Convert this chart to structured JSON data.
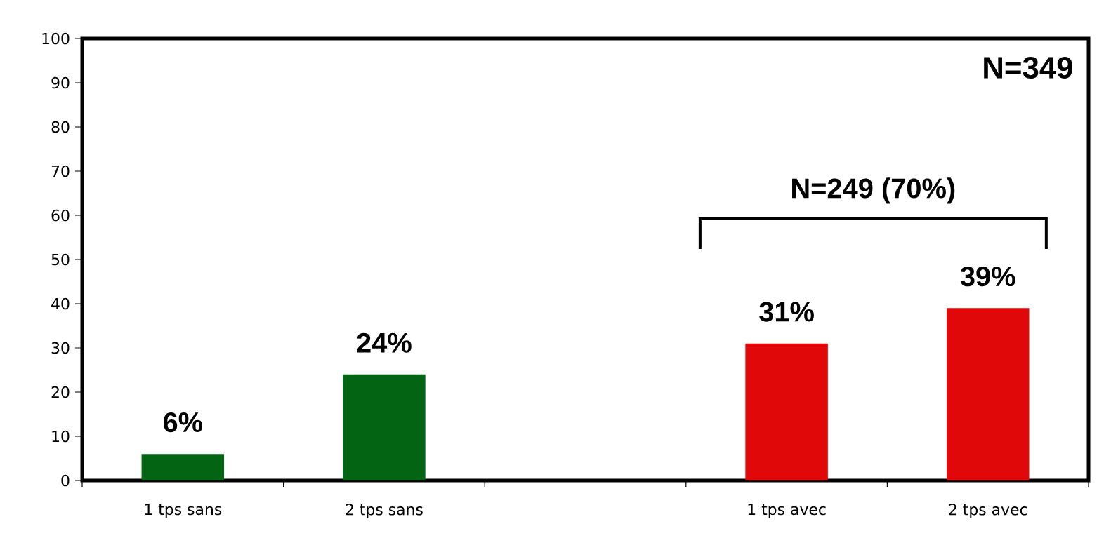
{
  "chart_data": {
    "type": "bar",
    "categories": [
      "1 tps sans",
      "2 tps sans",
      null,
      "1 tps avec",
      "2 tps avec"
    ],
    "values": [
      6,
      24,
      null,
      31,
      39
    ],
    "colors": [
      "#036414",
      "#036414",
      null,
      "#e00808",
      "#e00808"
    ],
    "value_labels": [
      "6%",
      "24%",
      null,
      "31%",
      "39%"
    ],
    "ylim": [
      0,
      100
    ],
    "yticks": [
      0,
      10,
      20,
      30,
      40,
      50,
      60,
      70,
      80,
      90,
      100
    ],
    "annotations": [
      "N=349",
      "N=249 (70%)"
    ],
    "grid": false
  }
}
